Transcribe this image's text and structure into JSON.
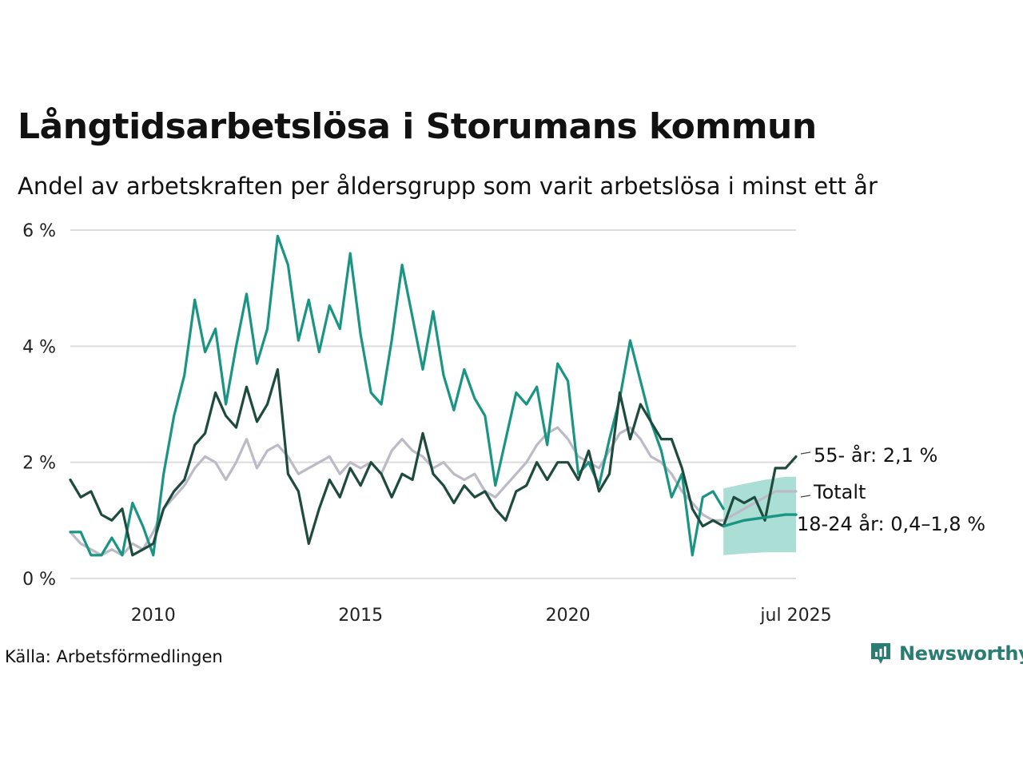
{
  "title": "Långtidsarbetslösa i Storumans kommun",
  "subtitle": "Andel av arbetskraften per åldersgrupp som varit arbetslösa i minst ett år",
  "source": "Källa: Arbetsförmedlingen",
  "brand": "Newsworthy",
  "colors": {
    "series_55": "#1f4a3e",
    "series_18_24": "#1a9483",
    "series_total": "#bdbac8",
    "band": "#8fd3c5",
    "grid": "#dddddd",
    "brand": "#2a7d72"
  },
  "chart_data": {
    "type": "line",
    "title": "Långtidsarbetslösa i Storumans kommun",
    "ylabel": "",
    "xlabel": "",
    "ylim": [
      0,
      6
    ],
    "yticks": [
      0,
      2,
      4,
      6
    ],
    "ytick_labels": [
      "0 %",
      "2 %",
      "4 %",
      "6 %"
    ],
    "xlim": [
      "2008-01",
      "2025-07"
    ],
    "xticks": [
      "2010-01",
      "2015-01",
      "2020-01",
      "2025-07"
    ],
    "xtick_labels": [
      "2010",
      "2015",
      "2020",
      "jul 2025"
    ],
    "grid": true,
    "legend": "direct labels at right end",
    "labels": {
      "series_55": "55- år: 2,1 %",
      "series_total": "Totalt",
      "series_18_24": "18-24 år: 0,4–1,8 %"
    },
    "series": [
      {
        "name": "55- år",
        "key": "series_55",
        "points": [
          [
            "2008-01",
            1.7
          ],
          [
            "2008-04",
            1.4
          ],
          [
            "2008-07",
            1.5
          ],
          [
            "2008-10",
            1.1
          ],
          [
            "2009-01",
            1.0
          ],
          [
            "2009-04",
            1.2
          ],
          [
            "2009-07",
            0.4
          ],
          [
            "2009-10",
            0.5
          ],
          [
            "2010-01",
            0.6
          ],
          [
            "2010-04",
            1.2
          ],
          [
            "2010-07",
            1.5
          ],
          [
            "2010-10",
            1.7
          ],
          [
            "2011-01",
            2.3
          ],
          [
            "2011-04",
            2.5
          ],
          [
            "2011-07",
            3.2
          ],
          [
            "2011-10",
            2.8
          ],
          [
            "2012-01",
            2.6
          ],
          [
            "2012-04",
            3.3
          ],
          [
            "2012-07",
            2.7
          ],
          [
            "2012-10",
            3.0
          ],
          [
            "2013-01",
            3.6
          ],
          [
            "2013-02",
            3.0
          ],
          [
            "2013-04",
            1.8
          ],
          [
            "2013-07",
            1.5
          ],
          [
            "2013-10",
            0.6
          ],
          [
            "2014-01",
            1.2
          ],
          [
            "2014-04",
            1.7
          ],
          [
            "2014-07",
            1.4
          ],
          [
            "2014-10",
            1.9
          ],
          [
            "2015-01",
            1.6
          ],
          [
            "2015-04",
            2.0
          ],
          [
            "2015-07",
            1.8
          ],
          [
            "2015-10",
            1.4
          ],
          [
            "2016-01",
            1.8
          ],
          [
            "2016-04",
            1.7
          ],
          [
            "2016-07",
            2.5
          ],
          [
            "2016-10",
            1.8
          ],
          [
            "2017-01",
            1.6
          ],
          [
            "2017-04",
            1.3
          ],
          [
            "2017-07",
            1.6
          ],
          [
            "2017-10",
            1.4
          ],
          [
            "2018-01",
            1.5
          ],
          [
            "2018-04",
            1.2
          ],
          [
            "2018-07",
            1.0
          ],
          [
            "2018-10",
            1.5
          ],
          [
            "2019-01",
            1.6
          ],
          [
            "2019-04",
            2.0
          ],
          [
            "2019-07",
            1.7
          ],
          [
            "2019-10",
            2.0
          ],
          [
            "2020-01",
            2.0
          ],
          [
            "2020-04",
            1.7
          ],
          [
            "2020-07",
            2.2
          ],
          [
            "2020-10",
            1.5
          ],
          [
            "2021-01",
            1.8
          ],
          [
            "2021-04",
            3.2
          ],
          [
            "2021-07",
            2.4
          ],
          [
            "2021-10",
            3.0
          ],
          [
            "2022-01",
            2.7
          ],
          [
            "2022-04",
            2.4
          ],
          [
            "2022-07",
            2.4
          ],
          [
            "2022-10",
            1.9
          ],
          [
            "2023-01",
            1.2
          ],
          [
            "2023-04",
            0.9
          ],
          [
            "2023-07",
            1.0
          ],
          [
            "2023-10",
            0.9
          ],
          [
            "2024-01",
            1.4
          ],
          [
            "2024-04",
            1.3
          ],
          [
            "2024-07",
            1.4
          ],
          [
            "2024-10",
            1.0
          ],
          [
            "2025-01",
            1.9
          ],
          [
            "2025-04",
            1.9
          ],
          [
            "2025-07",
            2.1
          ]
        ]
      },
      {
        "name": "18-24 år",
        "key": "series_18_24",
        "points": [
          [
            "2008-01",
            0.8
          ],
          [
            "2008-04",
            0.8
          ],
          [
            "2008-07",
            0.4
          ],
          [
            "2008-10",
            0.4
          ],
          [
            "2009-01",
            0.7
          ],
          [
            "2009-04",
            0.4
          ],
          [
            "2009-07",
            1.3
          ],
          [
            "2009-10",
            0.9
          ],
          [
            "2010-01",
            0.4
          ],
          [
            "2010-04",
            1.8
          ],
          [
            "2010-07",
            2.8
          ],
          [
            "2010-10",
            3.5
          ],
          [
            "2011-01",
            4.8
          ],
          [
            "2011-04",
            3.9
          ],
          [
            "2011-07",
            4.3
          ],
          [
            "2011-10",
            3.0
          ],
          [
            "2012-01",
            4.0
          ],
          [
            "2012-04",
            4.9
          ],
          [
            "2012-07",
            3.7
          ],
          [
            "2012-10",
            4.3
          ],
          [
            "2013-01",
            5.9
          ],
          [
            "2013-04",
            5.4
          ],
          [
            "2013-07",
            4.1
          ],
          [
            "2013-10",
            4.8
          ],
          [
            "2014-01",
            3.9
          ],
          [
            "2014-04",
            4.7
          ],
          [
            "2014-07",
            4.3
          ],
          [
            "2014-10",
            5.6
          ],
          [
            "2015-01",
            4.2
          ],
          [
            "2015-04",
            3.2
          ],
          [
            "2015-07",
            3.0
          ],
          [
            "2015-10",
            4.1
          ],
          [
            "2016-01",
            5.4
          ],
          [
            "2016-04",
            4.5
          ],
          [
            "2016-07",
            3.6
          ],
          [
            "2016-10",
            4.6
          ],
          [
            "2017-01",
            3.5
          ],
          [
            "2017-04",
            2.9
          ],
          [
            "2017-07",
            3.6
          ],
          [
            "2017-10",
            3.1
          ],
          [
            "2018-01",
            2.8
          ],
          [
            "2018-04",
            1.6
          ],
          [
            "2018-07",
            2.4
          ],
          [
            "2018-10",
            3.2
          ],
          [
            "2019-01",
            3.0
          ],
          [
            "2019-04",
            3.3
          ],
          [
            "2019-07",
            2.3
          ],
          [
            "2019-10",
            3.7
          ],
          [
            "2020-01",
            3.4
          ],
          [
            "2020-04",
            1.8
          ],
          [
            "2020-07",
            2.0
          ],
          [
            "2020-10",
            1.6
          ],
          [
            "2021-01",
            2.4
          ],
          [
            "2021-04",
            3.1
          ],
          [
            "2021-07",
            4.1
          ],
          [
            "2021-10",
            3.4
          ],
          [
            "2022-01",
            2.7
          ],
          [
            "2022-04",
            2.2
          ],
          [
            "2022-07",
            1.4
          ],
          [
            "2022-10",
            1.8
          ],
          [
            "2023-01",
            0.4
          ],
          [
            "2023-04",
            1.4
          ],
          [
            "2023-07",
            1.5
          ],
          [
            "2023-10",
            1.2
          ]
        ]
      },
      {
        "name": "Totalt",
        "key": "series_total",
        "points": [
          [
            "2008-01",
            0.8
          ],
          [
            "2008-04",
            0.6
          ],
          [
            "2008-07",
            0.5
          ],
          [
            "2008-10",
            0.4
          ],
          [
            "2009-01",
            0.5
          ],
          [
            "2009-04",
            0.4
          ],
          [
            "2009-07",
            0.6
          ],
          [
            "2009-10",
            0.5
          ],
          [
            "2010-01",
            0.8
          ],
          [
            "2010-04",
            1.2
          ],
          [
            "2010-07",
            1.4
          ],
          [
            "2010-10",
            1.6
          ],
          [
            "2011-01",
            1.9
          ],
          [
            "2011-04",
            2.1
          ],
          [
            "2011-07",
            2.0
          ],
          [
            "2011-10",
            1.7
          ],
          [
            "2012-01",
            2.0
          ],
          [
            "2012-04",
            2.4
          ],
          [
            "2012-07",
            1.9
          ],
          [
            "2012-10",
            2.2
          ],
          [
            "2013-01",
            2.3
          ],
          [
            "2013-04",
            2.1
          ],
          [
            "2013-07",
            1.8
          ],
          [
            "2013-10",
            1.9
          ],
          [
            "2014-01",
            2.0
          ],
          [
            "2014-04",
            2.1
          ],
          [
            "2014-07",
            1.8
          ],
          [
            "2014-10",
            2.0
          ],
          [
            "2015-01",
            1.9
          ],
          [
            "2015-04",
            2.0
          ],
          [
            "2015-07",
            1.8
          ],
          [
            "2015-10",
            2.2
          ],
          [
            "2016-01",
            2.4
          ],
          [
            "2016-04",
            2.2
          ],
          [
            "2016-07",
            2.1
          ],
          [
            "2016-10",
            1.9
          ],
          [
            "2017-01",
            2.0
          ],
          [
            "2017-04",
            1.8
          ],
          [
            "2017-07",
            1.7
          ],
          [
            "2017-10",
            1.8
          ],
          [
            "2018-01",
            1.5
          ],
          [
            "2018-04",
            1.4
          ],
          [
            "2018-07",
            1.6
          ],
          [
            "2018-10",
            1.8
          ],
          [
            "2019-01",
            2.0
          ],
          [
            "2019-04",
            2.3
          ],
          [
            "2019-07",
            2.5
          ],
          [
            "2019-10",
            2.6
          ],
          [
            "2020-01",
            2.4
          ],
          [
            "2020-04",
            2.1
          ],
          [
            "2020-07",
            2.0
          ],
          [
            "2020-10",
            1.9
          ],
          [
            "2021-01",
            2.2
          ],
          [
            "2021-04",
            2.5
          ],
          [
            "2021-07",
            2.6
          ],
          [
            "2021-10",
            2.4
          ],
          [
            "2022-01",
            2.1
          ],
          [
            "2022-04",
            2.0
          ],
          [
            "2022-07",
            1.8
          ],
          [
            "2022-10",
            1.5
          ],
          [
            "2023-01",
            1.3
          ],
          [
            "2023-04",
            1.1
          ],
          [
            "2023-07",
            1.0
          ],
          [
            "2023-10",
            1.0
          ],
          [
            "2024-01",
            1.1
          ],
          [
            "2024-04",
            1.2
          ],
          [
            "2024-07",
            1.3
          ],
          [
            "2024-10",
            1.4
          ],
          [
            "2025-01",
            1.5
          ],
          [
            "2025-04",
            1.5
          ],
          [
            "2025-07",
            1.5
          ]
        ]
      },
      {
        "name": "18-24 år (prognos)",
        "key": "series_18_24",
        "trend": true,
        "points": [
          [
            "2023-10",
            0.9
          ],
          [
            "2024-04",
            1.0
          ],
          [
            "2024-10",
            1.05
          ],
          [
            "2025-04",
            1.1
          ],
          [
            "2025-07",
            1.1
          ]
        ],
        "band": [
          [
            "2023-10",
            0.4,
            1.55
          ],
          [
            "2024-04",
            0.43,
            1.63
          ],
          [
            "2024-10",
            0.45,
            1.7
          ],
          [
            "2025-04",
            0.45,
            1.75
          ],
          [
            "2025-07",
            0.45,
            1.75
          ]
        ]
      }
    ]
  }
}
